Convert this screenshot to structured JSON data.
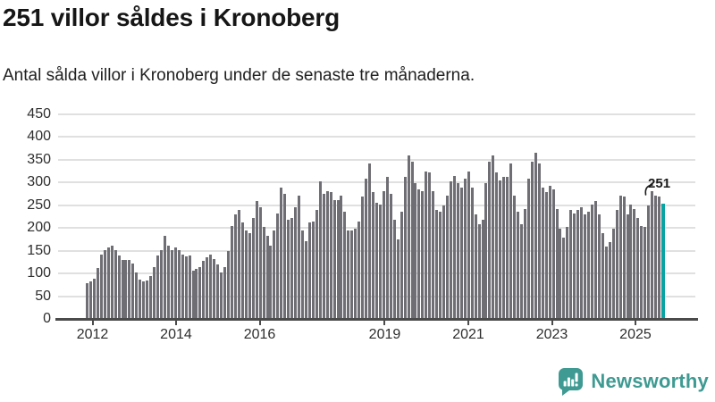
{
  "header": {
    "title": "251 villor såldes i Kronoberg",
    "subtitle": "Antal sålda villor i Kronoberg under de senaste tre månaderna."
  },
  "chart_data": {
    "type": "bar",
    "title": "251 villor såldes i Kronoberg",
    "subtitle": "Antal sålda villor i Kronoberg under de senaste tre månaderna.",
    "xlabel": "",
    "ylabel": "",
    "ylim": [
      0,
      450
    ],
    "grid": true,
    "legend": "none",
    "y_ticks": [
      0,
      50,
      100,
      150,
      200,
      250,
      300,
      350,
      400,
      450
    ],
    "x_ticks": [
      {
        "label": "2012",
        "pos_pct": 5.4
      },
      {
        "label": "2014",
        "pos_pct": 18.51
      },
      {
        "label": "2016",
        "pos_pct": 31.63
      },
      {
        "label": "2019",
        "pos_pct": 51.26
      },
      {
        "label": "2021",
        "pos_pct": 64.38
      },
      {
        "label": "2023",
        "pos_pct": 77.49
      },
      {
        "label": "2025",
        "pos_pct": 90.6
      }
    ],
    "values": [
      77,
      80,
      87,
      110,
      140,
      150,
      155,
      160,
      150,
      137,
      127,
      127,
      127,
      120,
      100,
      85,
      80,
      82,
      93,
      113,
      137,
      150,
      180,
      160,
      150,
      155,
      150,
      140,
      135,
      137,
      105,
      108,
      112,
      125,
      133,
      140,
      130,
      117,
      100,
      113,
      147,
      203,
      227,
      237,
      210,
      193,
      187,
      220,
      257,
      243,
      200,
      180,
      160,
      193,
      230,
      287,
      273,
      217,
      220,
      243,
      270,
      193,
      170,
      210,
      213,
      237,
      300,
      273,
      280,
      277,
      260,
      260,
      270,
      233,
      193,
      193,
      197,
      213,
      267,
      307,
      340,
      277,
      253,
      250,
      280,
      310,
      273,
      217,
      173,
      233,
      310,
      357,
      343,
      297,
      283,
      280,
      323,
      320,
      280,
      237,
      233,
      247,
      270,
      300,
      313,
      297,
      287,
      307,
      323,
      287,
      227,
      207,
      217,
      297,
      343,
      357,
      320,
      303,
      310,
      310,
      340,
      270,
      233,
      207,
      240,
      307,
      343,
      363,
      340,
      287,
      277,
      290,
      283,
      240,
      197,
      177,
      200,
      237,
      230,
      237,
      243,
      227,
      233,
      250,
      257,
      227,
      187,
      157,
      167,
      197,
      237,
      270,
      267,
      227,
      250,
      240,
      220,
      203,
      200,
      247,
      280,
      270,
      267,
      251
    ],
    "highlight": {
      "index": 163,
      "value": 251,
      "label": "251"
    },
    "colors": {
      "bar": "#6e6e74",
      "highlight": "#0aa3a3",
      "gridline": "#e0e0e0",
      "axis": "#4b4b4b",
      "text": "#2e2e2e"
    }
  },
  "branding": {
    "logo_text": "Newsworthy",
    "logo_icon": "newsworthy-chart-bubble-icon",
    "color": "#3e9a92"
  }
}
